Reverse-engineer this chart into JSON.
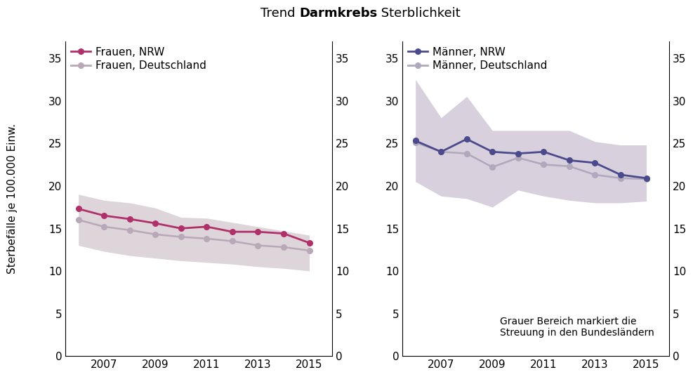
{
  "years": [
    2006,
    2007,
    2008,
    2009,
    2010,
    2011,
    2012,
    2013,
    2014,
    2015
  ],
  "frauen_nrw": [
    17.3,
    16.5,
    16.1,
    15.6,
    15.0,
    15.2,
    14.6,
    14.6,
    14.4,
    13.3
  ],
  "frauen_de": [
    16.0,
    15.2,
    14.8,
    14.3,
    14.0,
    13.8,
    13.5,
    13.0,
    12.8,
    12.4
  ],
  "frauen_de_upper": [
    19.0,
    18.3,
    18.0,
    17.4,
    16.3,
    16.2,
    15.7,
    15.2,
    14.7,
    14.2
  ],
  "frauen_de_lower": [
    13.0,
    12.3,
    11.8,
    11.5,
    11.2,
    11.0,
    10.8,
    10.5,
    10.3,
    10.0
  ],
  "maenner_nrw": [
    25.3,
    24.0,
    25.5,
    24.0,
    23.8,
    24.0,
    23.0,
    22.7,
    21.3,
    20.9
  ],
  "maenner_de": [
    25.1,
    24.0,
    23.8,
    22.2,
    23.3,
    22.5,
    22.3,
    21.3,
    20.9,
    20.8
  ],
  "maenner_de_upper": [
    32.5,
    28.0,
    30.5,
    26.5,
    26.5,
    26.5,
    26.5,
    25.2,
    24.8,
    24.8
  ],
  "maenner_de_lower": [
    20.5,
    18.8,
    18.5,
    17.5,
    19.5,
    18.8,
    18.3,
    18.0,
    18.0,
    18.2
  ],
  "color_frauen_nrw": "#b0306a",
  "color_frauen_de": "#b8a8b8",
  "color_maenner_nrw": "#4a4a8c",
  "color_maenner_de": "#b0a8bc",
  "shade_frauen": "#ddd5da",
  "shade_maenner": "#d8d0dc",
  "ylim": [
    0,
    37
  ],
  "yticks": [
    0,
    5,
    10,
    15,
    20,
    25,
    30,
    35
  ],
  "ylabel": "Sterbefälle je 100.000 Einw.",
  "annotation": "Grauer Bereich markiert die\nStreuung in den Bundesländern",
  "xlabel_ticks": [
    2007,
    2009,
    2011,
    2013,
    2015
  ],
  "xlim_left": 2005.5,
  "xlim_right": 2015.9
}
